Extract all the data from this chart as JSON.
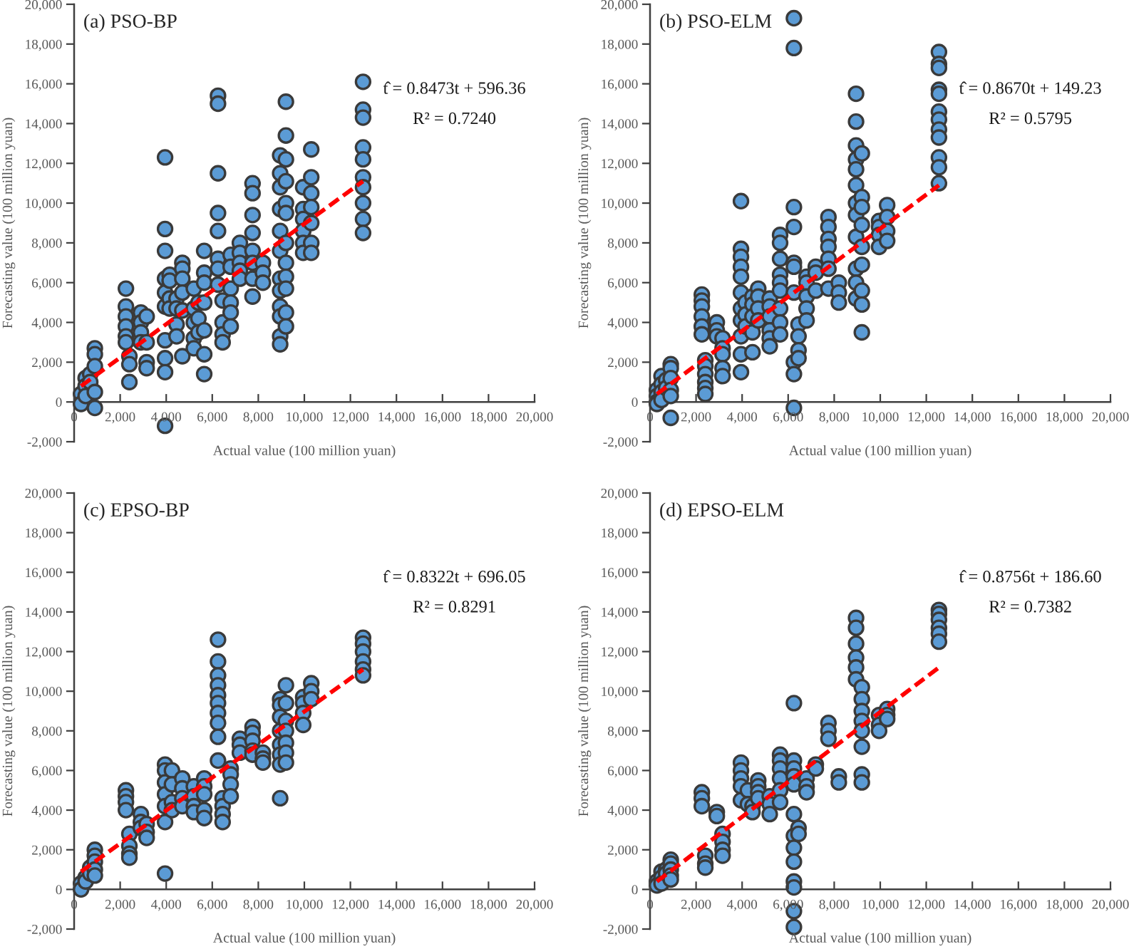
{
  "chart_data": [
    {
      "type": "scatter",
      "title": "(a) PSO-BP",
      "xlabel": "Actual value (100 million yuan)",
      "ylabel": "Forecasting value (100 million yuan)",
      "annotations": [
        "t̂ = 0.8473t + 596.36",
        "R² = 0.7240"
      ],
      "xlim": [
        0,
        20000
      ],
      "ylim": [
        -2000,
        20000
      ],
      "xticks": [
        0,
        {
          "value": 2000,
          "label": "2,000"
        },
        {
          "value": 4000,
          "label": "4,000"
        },
        {
          "value": 6000,
          "label": "6,000"
        },
        {
          "value": 8000,
          "label": "8,000"
        },
        {
          "value": 10000,
          "label": "10,000"
        },
        {
          "value": 12000,
          "label": "12,000"
        },
        {
          "value": 14000,
          "label": "14,000"
        },
        {
          "value": 16000,
          "label": "16,000"
        },
        {
          "value": 18000,
          "label": "18,000"
        },
        {
          "value": 20000,
          "label": "20,000"
        }
      ],
      "yticks": [
        {
          "value": -2000,
          "label": "-2,000"
        },
        0,
        {
          "value": 2000,
          "label": "2,000"
        },
        {
          "value": 4000,
          "label": "4,000"
        },
        {
          "value": 6000,
          "label": "6,000"
        },
        {
          "value": 8000,
          "label": "8,000"
        },
        {
          "value": 10000,
          "label": "10,000"
        },
        {
          "value": 12000,
          "label": "12,000"
        },
        {
          "value": 14000,
          "label": "14,000"
        },
        {
          "value": 16000,
          "label": "16,000"
        },
        {
          "value": 18000,
          "label": "18,000"
        },
        {
          "value": 20000,
          "label": "20,000"
        }
      ],
      "series": [
        {
          "color": "#5b9bd5",
          "marker": "circle",
          "x": [
            300,
            300,
            500,
            500,
            500,
            700,
            700,
            900,
            900,
            900,
            900,
            900,
            2250,
            2250,
            2250,
            2250,
            2250,
            2250,
            2400,
            2400,
            2400,
            2900,
            2900,
            2900,
            2900,
            3150,
            3150,
            3150,
            3150,
            3950,
            3950,
            3950,
            3950,
            3950,
            3950,
            3950,
            3950,
            3950,
            3950,
            4150,
            4150,
            4150,
            4150,
            4450,
            4450,
            4450,
            4450,
            4700,
            4700,
            4700,
            4700,
            4700,
            4700,
            5200,
            5200,
            5200,
            5200,
            5200,
            5400,
            5400,
            5400,
            5650,
            5650,
            5650,
            5650,
            5650,
            5650,
            5650,
            6250,
            6250,
            6250,
            6250,
            6250,
            6250,
            6250,
            6250,
            6450,
            6450,
            6450,
            6450,
            6800,
            6800,
            6800,
            6800,
            6800,
            6800,
            7200,
            7200,
            7200,
            7200,
            7200,
            7750,
            7750,
            7750,
            7750,
            7750,
            7750,
            7750,
            7750,
            8200,
            8200,
            8200,
            8950,
            8950,
            8950,
            8950,
            8950,
            8950,
            8950,
            8950,
            8950,
            8950,
            8950,
            8950,
            9200,
            9200,
            9200,
            9200,
            9200,
            9200,
            9200,
            9200,
            9200,
            9200,
            9200,
            9200,
            9950,
            9950,
            9950,
            9950,
            9950,
            9950,
            10300,
            10300,
            10300,
            10300,
            10300,
            10300,
            10300,
            12550,
            12550,
            12550,
            12550,
            12550,
            12550,
            12550,
            12550,
            12550,
            12550
          ],
          "values": [
            400,
            -100,
            1200,
            800,
            300,
            1400,
            1000,
            2700,
            2400,
            1800,
            500,
            -300,
            5700,
            4800,
            4300,
            3800,
            3300,
            3000,
            2300,
            1900,
            1000,
            4500,
            4000,
            3500,
            3000,
            4300,
            3000,
            2000,
            1700,
            12300,
            8700,
            7600,
            6200,
            5500,
            4800,
            3100,
            2200,
            1500,
            -1200,
            6400,
            6100,
            5200,
            4700,
            5200,
            4700,
            3900,
            3300,
            7000,
            6700,
            6200,
            5500,
            4600,
            2300,
            5700,
            4700,
            4000,
            3200,
            2700,
            5000,
            4200,
            3500,
            7600,
            6500,
            6000,
            5000,
            3600,
            2400,
            1400,
            15400,
            15000,
            11500,
            9500,
            8600,
            7200,
            6700,
            5900,
            5100,
            4000,
            3400,
            3000,
            7400,
            6800,
            5700,
            5000,
            4500,
            3800,
            8000,
            7500,
            7000,
            6600,
            6200,
            11000,
            10500,
            9400,
            8500,
            7600,
            7000,
            6200,
            5300,
            7000,
            6500,
            6000,
            12400,
            11500,
            10800,
            9700,
            8600,
            7600,
            6200,
            5600,
            4800,
            4300,
            3300,
            2900,
            15100,
            13400,
            12200,
            11100,
            10000,
            9500,
            8000,
            7000,
            6300,
            5700,
            4500,
            3800,
            10800,
            9700,
            9200,
            8600,
            8000,
            7500,
            12700,
            11300,
            10500,
            9800,
            9000,
            8000,
            7500,
            16100,
            14700,
            14300,
            12800,
            12200,
            11300,
            10800,
            10000,
            9200,
            8500
          ]
        },
        {
          "type": "line",
          "color": "#ff0000",
          "line_style": "dashed",
          "marker": "none",
          "x": [
            300,
            12550
          ],
          "values": [
            800,
            11100
          ]
        }
      ]
    },
    {
      "type": "scatter",
      "title": "(b) PSO-ELM",
      "xlabel": "Actual value (100 million yuan)",
      "ylabel": "Forecasting value (100 million yuan)",
      "annotations": [
        "t̂ = 0.8670t + 149.23",
        "R² = 0.5795"
      ],
      "xlim": [
        0,
        20000
      ],
      "ylim": [
        -2000,
        20000
      ],
      "xticks": [
        0,
        {
          "value": 2000,
          "label": "2,000"
        },
        {
          "value": 4000,
          "label": "4,000"
        },
        {
          "value": 6000,
          "label": "6,000"
        },
        {
          "value": 8000,
          "label": "8,000"
        },
        {
          "value": 10000,
          "label": "10,000"
        },
        {
          "value": 12000,
          "label": "12,000"
        },
        {
          "value": 14000,
          "label": "14,000"
        },
        {
          "value": 16000,
          "label": "16,000"
        },
        {
          "value": 18000,
          "label": "18,000"
        },
        {
          "value": 20000,
          "label": "20,000"
        }
      ],
      "yticks": [
        {
          "value": -2000,
          "label": "-2,000"
        },
        0,
        {
          "value": 2000,
          "label": "2,000"
        },
        {
          "value": 4000,
          "label": "4,000"
        },
        {
          "value": 6000,
          "label": "6,000"
        },
        {
          "value": 8000,
          "label": "8,000"
        },
        {
          "value": 10000,
          "label": "10,000"
        },
        {
          "value": 12000,
          "label": "12,000"
        },
        {
          "value": 14000,
          "label": "14,000"
        },
        {
          "value": 16000,
          "label": "16,000"
        },
        {
          "value": 18000,
          "label": "18,000"
        },
        {
          "value": 20000,
          "label": "20,000"
        }
      ],
      "series": [
        {
          "color": "#5b9bd5",
          "marker": "circle",
          "x": [
            300,
            300,
            300,
            300,
            500,
            500,
            500,
            500,
            700,
            700,
            900,
            900,
            900,
            900,
            900,
            900,
            2250,
            2250,
            2250,
            2250,
            2250,
            2250,
            2400,
            2400,
            2400,
            2400,
            2400,
            2400,
            2900,
            2900,
            2900,
            3150,
            3150,
            3150,
            3150,
            3150,
            3950,
            3950,
            3950,
            3950,
            3950,
            3950,
            3950,
            3950,
            3950,
            3950,
            3950,
            4150,
            4150,
            4150,
            4450,
            4450,
            4450,
            4450,
            4450,
            4700,
            4700,
            4700,
            4700,
            5200,
            5200,
            5200,
            5200,
            5200,
            5200,
            5650,
            5650,
            5650,
            5650,
            5650,
            5650,
            5650,
            5650,
            5650,
            6250,
            6250,
            6250,
            6250,
            6250,
            6250,
            6250,
            6250,
            6250,
            6250,
            6450,
            6450,
            6450,
            6450,
            6800,
            6800,
            6800,
            6800,
            6800,
            7200,
            7200,
            7200,
            7750,
            7750,
            7750,
            7750,
            7750,
            7750,
            7750,
            8200,
            8200,
            8200,
            8950,
            8950,
            8950,
            8950,
            8950,
            8950,
            8950,
            8950,
            8950,
            8950,
            8950,
            8950,
            9200,
            9200,
            9200,
            9200,
            9200,
            9200,
            9200,
            9200,
            9200,
            9950,
            9950,
            9950,
            9950,
            10300,
            10300,
            10300,
            10300,
            12550,
            12550,
            12550,
            12550,
            12550,
            12550,
            12550,
            12550,
            12550,
            12550,
            12550,
            12550
          ],
          "values": [
            600,
            300,
            0,
            -100,
            1300,
            900,
            500,
            100,
            1100,
            700,
            1900,
            1700,
            1200,
            600,
            300,
            -800,
            5400,
            5100,
            4800,
            4300,
            3800,
            3400,
            2100,
            1800,
            1400,
            1000,
            700,
            400,
            4000,
            3600,
            3300,
            3200,
            2700,
            2400,
            1700,
            1300,
            10100,
            7700,
            7300,
            6800,
            6300,
            5500,
            4700,
            4100,
            3300,
            2400,
            1500,
            5000,
            4400,
            3800,
            5300,
            4900,
            4300,
            3500,
            2500,
            5700,
            5300,
            4700,
            4100,
            5200,
            4800,
            4300,
            3600,
            3200,
            2800,
            8400,
            8000,
            7200,
            6400,
            6000,
            5600,
            4700,
            4000,
            3400,
            19300,
            17800,
            9800,
            8800,
            7000,
            6800,
            5500,
            2000,
            1400,
            -300,
            3900,
            3300,
            2600,
            2200,
            6300,
            6000,
            5300,
            4700,
            4100,
            6800,
            6500,
            5600,
            9300,
            8800,
            8200,
            7800,
            7200,
            6700,
            5700,
            6000,
            5500,
            5000,
            15500,
            14100,
            12900,
            12200,
            11700,
            10900,
            10000,
            9400,
            8300,
            6700,
            6000,
            5200,
            12500,
            10300,
            9800,
            8900,
            7800,
            6900,
            5600,
            4900,
            3500,
            9100,
            8800,
            8400,
            7800,
            9900,
            9300,
            8600,
            8100,
            17600,
            17000,
            16800,
            15700,
            15500,
            14600,
            14200,
            13700,
            13300,
            12300,
            11800,
            11000
          ]
        },
        {
          "type": "line",
          "color": "#ff0000",
          "line_style": "dashed",
          "marker": "none",
          "x": [
            300,
            12550
          ],
          "values": [
            400,
            10900
          ]
        }
      ]
    },
    {
      "type": "scatter",
      "title": "(c) EPSO-BP",
      "xlabel": "Actual value (100 million yuan)",
      "ylabel": "Forecasting value (100 million yuan)",
      "annotations": [
        "t̂ = 0.8322t + 696.05",
        "R² = 0.8291"
      ],
      "xlim": [
        0,
        20000
      ],
      "ylim": [
        -2000,
        20000
      ],
      "xticks": [
        0,
        {
          "value": 2000,
          "label": "2,000"
        },
        {
          "value": 4000,
          "label": "4,000"
        },
        {
          "value": 6000,
          "label": "6,000"
        },
        {
          "value": 8000,
          "label": "8,000"
        },
        {
          "value": 10000,
          "label": "10,000"
        },
        {
          "value": 12000,
          "label": "12,000"
        },
        {
          "value": 14000,
          "label": "14,000"
        },
        {
          "value": 16000,
          "label": "16,000"
        },
        {
          "value": 18000,
          "label": "18,000"
        },
        {
          "value": 20000,
          "label": "20,000"
        }
      ],
      "yticks": [
        {
          "value": -2000,
          "label": "-2,000"
        },
        0,
        {
          "value": 2000,
          "label": "2,000"
        },
        {
          "value": 4000,
          "label": "4,000"
        },
        {
          "value": 6000,
          "label": "6,000"
        },
        {
          "value": 8000,
          "label": "8,000"
        },
        {
          "value": 10000,
          "label": "10,000"
        },
        {
          "value": 12000,
          "label": "12,000"
        },
        {
          "value": 14000,
          "label": "14,000"
        },
        {
          "value": 16000,
          "label": "16,000"
        },
        {
          "value": 18000,
          "label": "18,000"
        },
        {
          "value": 20000,
          "label": "20,000"
        }
      ],
      "series": [
        {
          "color": "#5b9bd5",
          "marker": "circle",
          "x": [
            300,
            300,
            500,
            500,
            700,
            700,
            900,
            900,
            900,
            900,
            900,
            2250,
            2250,
            2250,
            2250,
            2400,
            2400,
            2400,
            2400,
            2900,
            2900,
            2900,
            3150,
            3150,
            3150,
            3950,
            3950,
            3950,
            3950,
            3950,
            3950,
            3950,
            4250,
            4250,
            4250,
            4250,
            4700,
            4700,
            4700,
            4700,
            5200,
            5200,
            5200,
            5200,
            5650,
            5650,
            5650,
            5650,
            5650,
            6250,
            6250,
            6250,
            6250,
            6250,
            6250,
            6250,
            6250,
            6250,
            6250,
            6450,
            6450,
            6450,
            6450,
            6800,
            6800,
            6800,
            6800,
            7200,
            7200,
            7200,
            7750,
            7750,
            7750,
            7750,
            7750,
            8200,
            8200,
            8200,
            8950,
            8950,
            8950,
            8950,
            8950,
            8950,
            8950,
            8950,
            9200,
            9200,
            9200,
            9200,
            9200,
            9200,
            9200,
            9950,
            9950,
            9950,
            9950,
            10300,
            10300,
            10300,
            12550,
            12550,
            12550,
            12550,
            12550,
            12550
          ],
          "values": [
            300,
            0,
            600,
            400,
            1100,
            800,
            2000,
            1700,
            1400,
            1000,
            700,
            5000,
            4700,
            4400,
            4000,
            2800,
            2200,
            1800,
            1600,
            3800,
            3400,
            3100,
            3300,
            2900,
            2600,
            6300,
            6000,
            5400,
            4800,
            4200,
            3400,
            800,
            6000,
            5300,
            4400,
            4000,
            5600,
            5100,
            4600,
            4200,
            5200,
            4700,
            4200,
            3900,
            5600,
            5200,
            4800,
            4000,
            3600,
            12600,
            11500,
            10800,
            10300,
            9800,
            9400,
            8900,
            8400,
            7700,
            6500,
            4600,
            4200,
            3800,
            3400,
            6100,
            5800,
            5300,
            4700,
            7600,
            7300,
            6900,
            8200,
            7900,
            7500,
            7000,
            6800,
            6900,
            6600,
            6400,
            9600,
            9300,
            8700,
            8000,
            7300,
            6800,
            6300,
            4600,
            10300,
            9400,
            8500,
            8000,
            7400,
            6900,
            6400,
            9700,
            9400,
            8900,
            8300,
            10400,
            10000,
            9600,
            12700,
            12400,
            12000,
            11500,
            11100,
            10800
          ]
        },
        {
          "type": "line",
          "color": "#ff0000",
          "line_style": "dashed",
          "marker": "none",
          "x": [
            300,
            12550
          ],
          "values": [
            900,
            11100
          ]
        }
      ]
    },
    {
      "type": "scatter",
      "title": "(d) EPSO-ELM",
      "xlabel": "Actual value (100 million yuan)",
      "ylabel": "Forecasting value (100 million yuan)",
      "annotations": [
        "t̂ = 0.8756t + 186.60",
        "R² = 0.7382"
      ],
      "xlim": [
        0,
        20000
      ],
      "ylim": [
        -2000,
        20000
      ],
      "xticks": [
        0,
        {
          "value": 2000,
          "label": "2,000"
        },
        {
          "value": 4000,
          "label": "4,000"
        },
        {
          "value": 6000,
          "label": "6,000"
        },
        {
          "value": 8000,
          "label": "8,000"
        },
        {
          "value": 10000,
          "label": "10,000"
        },
        {
          "value": 12000,
          "label": "12,000"
        },
        {
          "value": 14000,
          "label": "14,000"
        },
        {
          "value": 16000,
          "label": "16,000"
        },
        {
          "value": 18000,
          "label": "18,000"
        },
        {
          "value": 20000,
          "label": "20,000"
        }
      ],
      "yticks": [
        {
          "value": -2000,
          "label": "-2,000"
        },
        0,
        {
          "value": 2000,
          "label": "2,000"
        },
        {
          "value": 4000,
          "label": "4,000"
        },
        {
          "value": 6000,
          "label": "6,000"
        },
        {
          "value": 8000,
          "label": "8,000"
        },
        {
          "value": 10000,
          "label": "10,000"
        },
        {
          "value": 12000,
          "label": "12,000"
        },
        {
          "value": 14000,
          "label": "14,000"
        },
        {
          "value": 16000,
          "label": "16,000"
        },
        {
          "value": 18000,
          "label": "18,000"
        },
        {
          "value": 20000,
          "label": "20,000"
        }
      ],
      "series": [
        {
          "color": "#5b9bd5",
          "marker": "circle",
          "x": [
            300,
            300,
            500,
            500,
            500,
            700,
            700,
            900,
            900,
            900,
            900,
            900,
            2250,
            2250,
            2250,
            2400,
            2400,
            2400,
            2900,
            2900,
            3150,
            3150,
            3150,
            3150,
            3950,
            3950,
            3950,
            3950,
            3950,
            4250,
            4250,
            4450,
            4450,
            4700,
            4700,
            4700,
            4700,
            5200,
            5200,
            5200,
            5650,
            5650,
            5650,
            5650,
            5650,
            5650,
            6250,
            6250,
            6250,
            6250,
            6250,
            6250,
            6250,
            6250,
            6250,
            6250,
            6250,
            6250,
            6250,
            6450,
            6450,
            6800,
            6800,
            6800,
            7200,
            7200,
            7750,
            7750,
            7750,
            8200,
            8200,
            8950,
            8950,
            8950,
            8950,
            8950,
            8950,
            9200,
            9200,
            9200,
            9200,
            9200,
            9200,
            9200,
            9200,
            9950,
            9950,
            9950,
            10300,
            10300,
            10300,
            12550,
            12550,
            12550,
            12550,
            12550,
            12550
          ],
          "values": [
            400,
            200,
            900,
            600,
            300,
            1000,
            800,
            1500,
            1300,
            1000,
            700,
            500,
            4900,
            4600,
            4200,
            1700,
            1300,
            1100,
            3900,
            3700,
            2800,
            2400,
            2000,
            1700,
            6400,
            6000,
            5600,
            5200,
            4500,
            5000,
            4300,
            4200,
            3900,
            5500,
            5200,
            4900,
            4600,
            4700,
            4300,
            3800,
            6800,
            6500,
            6100,
            5600,
            5000,
            4400,
            9400,
            6500,
            6100,
            5700,
            5300,
            3800,
            2700,
            2100,
            1400,
            400,
            100,
            -1100,
            -1900,
            3100,
            2800,
            5600,
            5200,
            4900,
            6300,
            6100,
            8400,
            8000,
            7600,
            5700,
            5400,
            13700,
            13200,
            12400,
            11700,
            11200,
            10600,
            10200,
            9600,
            9000,
            8500,
            8000,
            7200,
            5800,
            5400,
            8800,
            8300,
            8000,
            9100,
            8800,
            8600,
            14100,
            13900,
            13600,
            13200,
            12900,
            12500
          ]
        },
        {
          "type": "line",
          "color": "#ff0000",
          "line_style": "dashed",
          "marker": "none",
          "x": [
            300,
            12550
          ],
          "values": [
            400,
            11200
          ]
        }
      ]
    }
  ]
}
